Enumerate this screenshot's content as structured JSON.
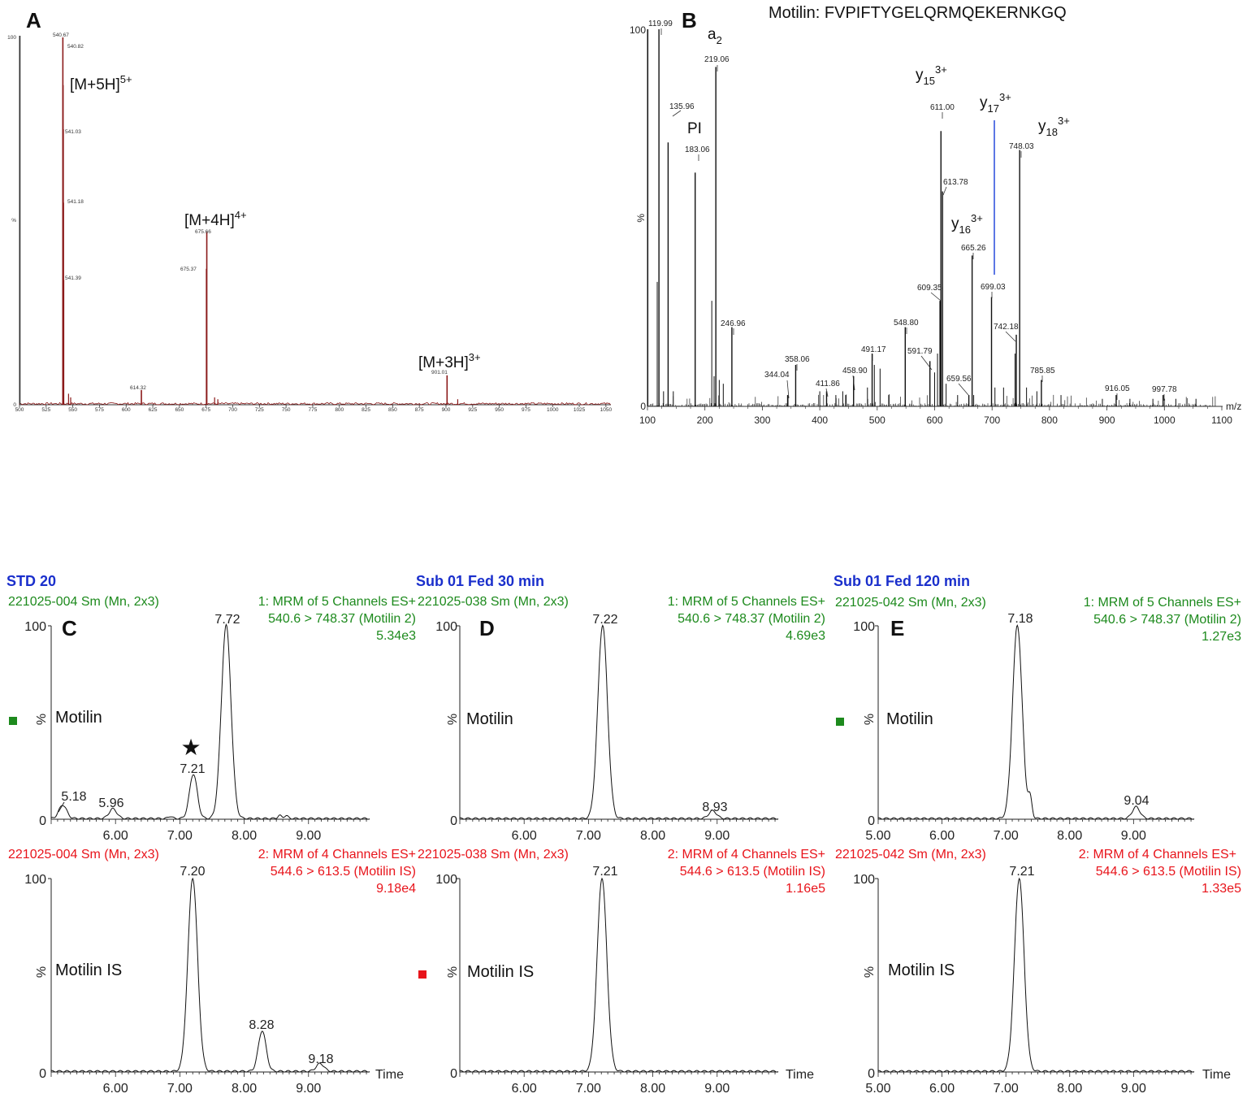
{
  "figure": {
    "panel_a": {
      "letter": "A",
      "x_ticks": [
        "500",
        "525",
        "550",
        "575",
        "600",
        "625",
        "650",
        "675",
        "700",
        "725",
        "750",
        "775",
        "800",
        "825",
        "850",
        "875",
        "900",
        "925",
        "950",
        "975",
        "1000",
        "1025",
        "1050"
      ],
      "y_ticks": [
        "100",
        "%",
        "0"
      ],
      "ion_labels": [
        {
          "id": "m5h",
          "base": "[M+5H]",
          "sup": "5+"
        },
        {
          "id": "m4h",
          "base": "[M+4H]",
          "sup": "4+"
        },
        {
          "id": "m3h",
          "base": "[M+3H]",
          "sup": "3+"
        }
      ],
      "peak_labels": [
        "540.67",
        "540.82",
        "541.03",
        "541.18",
        "541.39",
        "614.32",
        "675.66",
        "675.37",
        "901.01"
      ],
      "color": "#8b1a1a"
    },
    "panel_b": {
      "letter": "B",
      "sequence": "Motilin: FVPIFTYGELQRMQEKERNKGQ",
      "x_ticks": [
        "100",
        "200",
        "300",
        "400",
        "500",
        "600",
        "700",
        "800",
        "900",
        "1000",
        "1100"
      ],
      "y_ticks": [
        "100",
        "%",
        "0"
      ],
      "x_unit": "m/z",
      "fragment_labels": [
        {
          "id": "a2",
          "base": "a",
          "sub": "2",
          "sup": ""
        },
        {
          "id": "pi",
          "base": "PI",
          "sub": "",
          "sup": ""
        },
        {
          "id": "y15",
          "base": "y",
          "sub": "15",
          "sup": "3+"
        },
        {
          "id": "y16",
          "base": "y",
          "sub": "16",
          "sup": "3+"
        },
        {
          "id": "y17",
          "base": "y",
          "sub": "17",
          "sup": "3+"
        },
        {
          "id": "y18",
          "base": "y",
          "sub": "18",
          "sup": "3+"
        }
      ],
      "peak_labels": [
        "119.99",
        "135.96",
        "183.06",
        "219.06",
        "246.96",
        "344.04",
        "358.06",
        "411.86",
        "458.90",
        "491.17",
        "548.80",
        "591.79",
        "609.35",
        "611.00",
        "613.78",
        "659.56",
        "665.26",
        "699.03",
        "742.18",
        "748.03",
        "785.85",
        "916.05",
        "997.78"
      ],
      "blue_line_color": "#3355dd"
    },
    "chromatograms": {
      "headers": [
        {
          "id": "c",
          "title": "STD 20",
          "sample": "221025-004 Sm (Mn, 2x3)"
        },
        {
          "id": "d",
          "title": "Sub 01 Fed 30 min",
          "sample": "221025-038 Sm (Mn, 2x3)"
        },
        {
          "id": "e",
          "title": "Sub 01 Fed 120 min",
          "sample": "221025-042 Sm (Mn, 2x3)"
        }
      ],
      "top_channel": {
        "line1": "1: MRM of 5 Channels ES+",
        "line2": "540.6 > 748.37 (Motilin 2)"
      },
      "bottom_channel": {
        "line1": "2: MRM of 4 Channels ES+",
        "line2": "544.6 > 613.5 (Motilin IS)"
      },
      "intensities": {
        "c_top": "5.34e3",
        "c_bot": "9.18e4",
        "d_top": "4.69e3",
        "d_bot": "1.16e5",
        "e_top": "1.27e3",
        "e_bot": "1.33e5"
      },
      "letters": {
        "c": "C",
        "d": "D",
        "e": "E"
      },
      "compounds": {
        "top": "Motilin",
        "bottom": "Motilin IS"
      },
      "y_ticks": [
        "100",
        "%",
        "0"
      ],
      "x_ticks_ce": [
        "5.00",
        "6.00",
        "7.00",
        "8.00",
        "9.00"
      ],
      "x_ticks_cd": [
        "6.00",
        "7.00",
        "8.00",
        "9.00"
      ],
      "time_label": "Time",
      "star": "★",
      "peaks": {
        "c_top": [
          "7.72",
          "7.21",
          "5.18",
          "5.96"
        ],
        "c_bot": [
          "7.20",
          "8.28",
          "9.18"
        ],
        "d_top": [
          "7.22",
          "8.93"
        ],
        "d_bot": [
          "7.21"
        ],
        "e_top": [
          "7.18",
          "9.04"
        ],
        "e_bot": [
          "7.21"
        ]
      },
      "colors": {
        "green": "#1d8a1d",
        "red": "#e8141b",
        "blue": "#1a2fcc"
      }
    }
  },
  "chart_data": [
    {
      "type": "bar",
      "panel": "A",
      "title": "",
      "xlabel": "",
      "ylabel": "%",
      "xlim": [
        500,
        1060
      ],
      "ylim": [
        0,
        100
      ],
      "x": [
        540.67,
        540.82,
        541.03,
        541.18,
        541.39,
        614.32,
        675.37,
        675.66,
        901.01
      ],
      "values": [
        100,
        87,
        75,
        55,
        34,
        4,
        37,
        47,
        8
      ]
    },
    {
      "type": "bar",
      "panel": "B",
      "title": "Motilin: FVPIFTYGELQRMQEKERNKGQ",
      "xlabel": "m/z",
      "ylabel": "%",
      "xlim": [
        100,
        1100
      ],
      "ylim": [
        0,
        100
      ],
      "x": [
        100.5,
        119.99,
        135.96,
        183.06,
        219.06,
        246.96,
        344.04,
        358.06,
        411.86,
        458.9,
        491.17,
        548.8,
        591.79,
        609.35,
        611.0,
        613.78,
        659.56,
        665.26,
        699.03,
        742.18,
        748.03,
        785.85,
        916.05,
        997.78
      ],
      "values": [
        100,
        100,
        70,
        62,
        90,
        21,
        3,
        11,
        4,
        8,
        14,
        21,
        12,
        28,
        73,
        57,
        3,
        40,
        29,
        19,
        68,
        7,
        3,
        3
      ]
    },
    {
      "type": "line",
      "panel": "C",
      "series_label": "1: MRM of 5 Channels ES+ 540.6 > 748.37 (Motilin 2)",
      "xlim": [
        5.0,
        9.95
      ],
      "ylim": [
        0,
        100
      ],
      "peaks": [
        {
          "x": 5.18,
          "y": 7
        },
        {
          "x": 5.96,
          "y": 5
        },
        {
          "x": 7.21,
          "y": 23
        },
        {
          "x": 7.72,
          "y": 100
        }
      ]
    },
    {
      "type": "line",
      "panel": "C",
      "series_label": "2: MRM of 4 Channels ES+ 544.6 > 613.5 (Motilin IS)",
      "xlim": [
        5.0,
        9.95
      ],
      "ylim": [
        0,
        100
      ],
      "peaks": [
        {
          "x": 7.2,
          "y": 100
        },
        {
          "x": 8.28,
          "y": 21
        },
        {
          "x": 9.18,
          "y": 4
        }
      ]
    },
    {
      "type": "line",
      "panel": "D",
      "series_label": "1: MRM of 5 Channels ES+ 540.6 > 748.37 (Motilin 2)",
      "xlim": [
        5.0,
        9.95
      ],
      "ylim": [
        0,
        100
      ],
      "peaks": [
        {
          "x": 7.22,
          "y": 100
        },
        {
          "x": 8.93,
          "y": 4
        }
      ]
    },
    {
      "type": "line",
      "panel": "D",
      "series_label": "2: MRM of 4 Channels ES+ 544.6 > 613.5 (Motilin IS)",
      "xlim": [
        5.0,
        9.95
      ],
      "ylim": [
        0,
        100
      ],
      "peaks": [
        {
          "x": 7.21,
          "y": 100
        }
      ]
    },
    {
      "type": "line",
      "panel": "E",
      "series_label": "1: MRM of 5 Channels ES+ 540.6 > 748.37 (Motilin 2)",
      "xlim": [
        5.0,
        9.95
      ],
      "ylim": [
        0,
        100
      ],
      "peaks": [
        {
          "x": 7.18,
          "y": 100
        },
        {
          "x": 9.04,
          "y": 6
        }
      ]
    },
    {
      "type": "line",
      "panel": "E",
      "series_label": "2: MRM of 4 Channels ES+ 544.6 > 613.5 (Motilin IS)",
      "xlim": [
        5.0,
        9.95
      ],
      "ylim": [
        0,
        100
      ],
      "peaks": [
        {
          "x": 7.21,
          "y": 100
        }
      ]
    }
  ]
}
